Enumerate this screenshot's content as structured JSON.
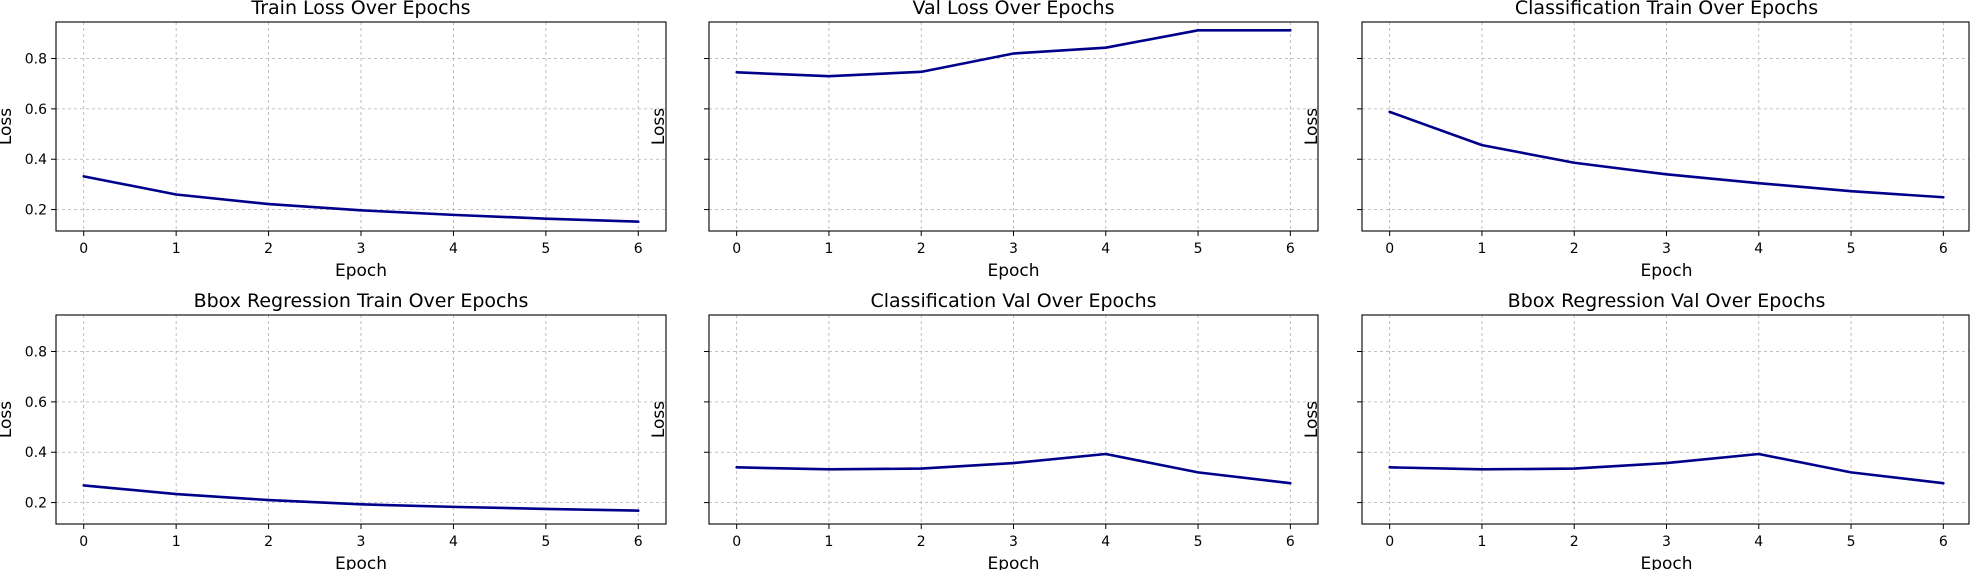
{
  "figure": {
    "line_color": "#00008b",
    "grid": true,
    "layout": "2x3",
    "shared_y": true
  },
  "chart_data": [
    {
      "type": "line",
      "title": "Train Loss Over Epochs",
      "xlabel": "Epoch",
      "ylabel": "Loss",
      "x": [
        0,
        1,
        2,
        3,
        4,
        5,
        6
      ],
      "series": [
        {
          "values": [
            0.332,
            0.26,
            0.222,
            0.197,
            0.179,
            0.164,
            0.152
          ]
        }
      ],
      "xlim": [
        -0.3,
        6.3
      ],
      "ylim": [
        0.115,
        0.945
      ],
      "yticks": [
        0.2,
        0.4,
        0.6,
        0.8
      ],
      "show_ytick_labels": true
    },
    {
      "type": "line",
      "title": "Val Loss Over Epochs",
      "xlabel": "Epoch",
      "ylabel": "Loss",
      "x": [
        0,
        1,
        2,
        3,
        4,
        5,
        6
      ],
      "series": [
        {
          "values": [
            0.745,
            0.73,
            0.747,
            0.82,
            0.843,
            0.912,
            0.912
          ]
        }
      ],
      "xlim": [
        -0.3,
        6.3
      ],
      "ylim": [
        0.115,
        0.945
      ],
      "yticks": [
        0.2,
        0.4,
        0.6,
        0.8
      ],
      "show_ytick_labels": false
    },
    {
      "type": "line",
      "title": "Classification Train Over Epochs",
      "xlabel": "Epoch",
      "ylabel": "Loss",
      "x": [
        0,
        1,
        2,
        3,
        4,
        5,
        6
      ],
      "series": [
        {
          "values": [
            0.588,
            0.456,
            0.386,
            0.34,
            0.305,
            0.273,
            0.249
          ]
        }
      ],
      "xlim": [
        -0.3,
        6.3
      ],
      "ylim": [
        0.115,
        0.945
      ],
      "yticks": [
        0.2,
        0.4,
        0.6,
        0.8
      ],
      "show_ytick_labels": false
    },
    {
      "type": "line",
      "title": "Bbox Regression Train Over Epochs",
      "xlabel": "Epoch",
      "ylabel": "Loss",
      "x": [
        0,
        1,
        2,
        3,
        4,
        5,
        6
      ],
      "series": [
        {
          "values": [
            0.268,
            0.234,
            0.21,
            0.193,
            0.183,
            0.175,
            0.168
          ]
        }
      ],
      "xlim": [
        -0.3,
        6.3
      ],
      "ylim": [
        0.115,
        0.945
      ],
      "yticks": [
        0.2,
        0.4,
        0.6,
        0.8
      ],
      "show_ytick_labels": true
    },
    {
      "type": "line",
      "title": "Classification Val Over Epochs",
      "xlabel": "Epoch",
      "ylabel": "Loss",
      "x": [
        0,
        1,
        2,
        3,
        4,
        5,
        6
      ],
      "series": [
        {
          "values": [
            0.34,
            0.332,
            0.335,
            0.357,
            0.393,
            0.32,
            0.277
          ]
        }
      ],
      "xlim": [
        -0.3,
        6.3
      ],
      "ylim": [
        0.115,
        0.945
      ],
      "yticks": [
        0.2,
        0.4,
        0.6,
        0.8
      ],
      "show_ytick_labels": false
    },
    {
      "type": "line",
      "title": "Bbox Regression Val Over Epochs",
      "xlabel": "Epoch",
      "ylabel": "Loss",
      "x": [
        0,
        1,
        2,
        3,
        4,
        5,
        6
      ],
      "series": [
        {
          "values": [
            0.34,
            0.332,
            0.335,
            0.357,
            0.393,
            0.32,
            0.277
          ]
        }
      ],
      "xlim": [
        -0.3,
        6.3
      ],
      "ylim": [
        0.115,
        0.945
      ],
      "yticks": [
        0.2,
        0.4,
        0.6,
        0.8
      ],
      "show_ytick_labels": false
    }
  ]
}
